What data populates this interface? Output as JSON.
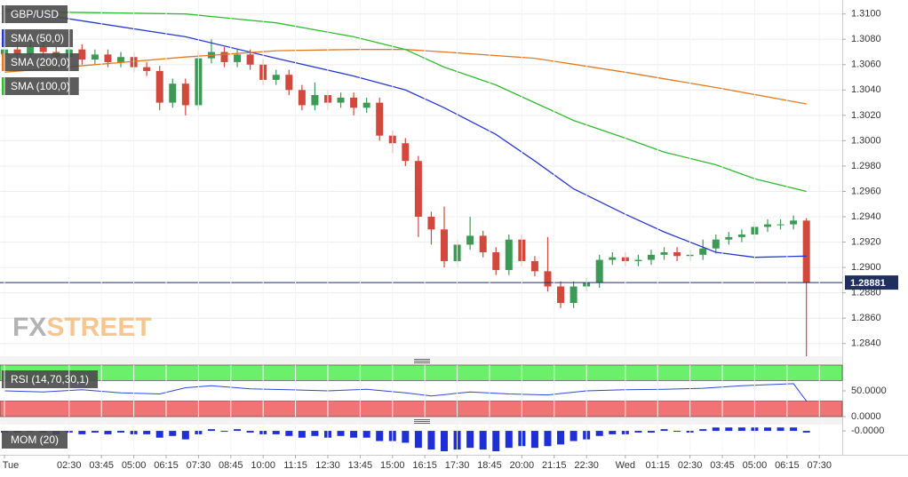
{
  "chart_data": [
    {
      "type": "candlestick",
      "title": "GBP/USD",
      "watermark": {
        "left": "FX",
        "right": "STREET"
      },
      "up_color": "#3d9a56",
      "down_color": "#d2483c",
      "candles": [
        [
          1.3068,
          1.3076,
          1.3064,
          1.3072
        ],
        [
          1.3072,
          1.3076,
          1.3064,
          1.3068
        ],
        [
          1.3068,
          1.3078,
          1.3064,
          1.3074
        ],
        [
          1.3074,
          1.3078,
          1.3066,
          1.307
        ],
        [
          1.307,
          1.3074,
          1.3062,
          1.3066
        ],
        [
          1.3066,
          1.3076,
          1.3062,
          1.3072
        ],
        [
          1.3072,
          1.3076,
          1.306,
          1.3064
        ],
        [
          1.3064,
          1.3072,
          1.306,
          1.3068
        ],
        [
          1.3068,
          1.3072,
          1.3058,
          1.3062
        ],
        [
          1.3062,
          1.307,
          1.3058,
          1.3066
        ],
        [
          1.3066,
          1.307,
          1.3054,
          1.3058
        ],
        [
          1.3058,
          1.3062,
          1.3051,
          1.3055
        ],
        [
          1.3055,
          1.3059,
          1.3024,
          1.303
        ],
        [
          1.303,
          1.3049,
          1.3026,
          1.3045
        ],
        [
          1.3045,
          1.3049,
          1.302,
          1.3028
        ],
        [
          1.3028,
          1.3071,
          1.3024,
          1.3065
        ],
        [
          1.3065,
          1.308,
          1.3061,
          1.307
        ],
        [
          1.307,
          1.3074,
          1.3058,
          1.3062
        ],
        [
          1.3062,
          1.3072,
          1.3058,
          1.3068
        ],
        [
          1.3068,
          1.3072,
          1.3056,
          1.306
        ],
        [
          1.306,
          1.3064,
          1.3044,
          1.3048
        ],
        [
          1.3048,
          1.3056,
          1.3044,
          1.3052
        ],
        [
          1.3052,
          1.3056,
          1.3036,
          1.304
        ],
        [
          1.304,
          1.3044,
          1.3024,
          1.3028
        ],
        [
          1.3028,
          1.3046,
          1.3024,
          1.3036
        ],
        [
          1.3036,
          1.304,
          1.3024,
          1.303
        ],
        [
          1.303,
          1.3038,
          1.3026,
          1.3034
        ],
        [
          1.3034,
          1.3038,
          1.302,
          1.3026
        ],
        [
          1.3026,
          1.3034,
          1.3022,
          1.303
        ],
        [
          1.303,
          1.3034,
          1.3,
          1.3004
        ],
        [
          1.3004,
          1.3008,
          1.299,
          1.2998
        ],
        [
          1.2998,
          1.3002,
          1.298,
          1.2984
        ],
        [
          1.2984,
          1.2988,
          1.2924,
          1.294
        ],
        [
          1.294,
          1.2944,
          1.2918,
          1.293
        ],
        [
          1.293,
          1.2948,
          1.29,
          1.2905
        ],
        [
          1.2905,
          1.2922,
          1.29,
          1.2918
        ],
        [
          1.2918,
          1.294,
          1.2914,
          1.2925
        ],
        [
          1.2925,
          1.2929,
          1.2908,
          1.2912
        ],
        [
          1.2912,
          1.2916,
          1.2894,
          1.2898
        ],
        [
          1.2898,
          1.2926,
          1.2894,
          1.2922
        ],
        [
          1.2922,
          1.2926,
          1.2901,
          1.2905
        ],
        [
          1.2905,
          1.2909,
          1.2893,
          1.2897
        ],
        [
          1.2897,
          1.2924,
          1.2881,
          1.2885
        ],
        [
          1.2885,
          1.2889,
          1.2868,
          1.2872
        ],
        [
          1.2872,
          1.2889,
          1.2868,
          1.2885
        ],
        [
          1.2885,
          1.2892,
          1.2881,
          1.2888
        ],
        [
          1.2888,
          1.291,
          1.2884,
          1.2906
        ],
        [
          1.2906,
          1.2912,
          1.2902,
          1.2908
        ],
        [
          1.2908,
          1.2912,
          1.2901,
          1.2905
        ],
        [
          1.2905,
          1.291,
          1.2901,
          1.2906
        ],
        [
          1.2906,
          1.2914,
          1.2902,
          1.291
        ],
        [
          1.291,
          1.2916,
          1.2906,
          1.2912
        ],
        [
          1.2912,
          1.2916,
          1.2905,
          1.2909
        ],
        [
          1.2909,
          1.2914,
          1.2905,
          1.291
        ],
        [
          1.291,
          1.2922,
          1.2906,
          1.2915
        ],
        [
          1.2915,
          1.2926,
          1.2911,
          1.2922
        ],
        [
          1.2922,
          1.2928,
          1.2918,
          1.2924
        ],
        [
          1.2924,
          1.293,
          1.292,
          1.2926
        ],
        [
          1.2926,
          1.2936,
          1.2922,
          1.2932
        ],
        [
          1.2932,
          1.2938,
          1.2928,
          1.2934
        ],
        [
          1.2934,
          1.2938,
          1.293,
          1.2934
        ],
        [
          1.2934,
          1.2941,
          1.293,
          1.2937
        ],
        [
          1.2937,
          1.2939,
          1.283,
          1.28881
        ]
      ],
      "series": [
        {
          "name": "SMA (50,0)",
          "color": "#2738d0",
          "x": [
            0,
            7,
            14,
            21,
            27,
            31,
            34,
            38,
            41,
            44,
            48,
            51,
            55,
            58,
            62
          ],
          "values": [
            1.3104,
            1.3093,
            1.3082,
            1.3065,
            1.3051,
            1.304,
            1.3026,
            1.3005,
            1.2984,
            1.2962,
            1.2942,
            1.2928,
            1.2912,
            1.2908,
            1.2909
          ]
        },
        {
          "name": "SMA (200,0)",
          "color": "#e07a22",
          "x": [
            0,
            7,
            14,
            21,
            27,
            31,
            34,
            41,
            48,
            55,
            62
          ],
          "values": [
            1.3054,
            1.306,
            1.3066,
            1.3071,
            1.3072,
            1.3072,
            1.307,
            1.3065,
            1.3054,
            1.3042,
            1.3029
          ]
        },
        {
          "name": "SMA (100,0)",
          "color": "#2fbb2f",
          "x": [
            0,
            14,
            21,
            27,
            31,
            34,
            38,
            41,
            44,
            48,
            51,
            55,
            58,
            62
          ],
          "values": [
            1.3102,
            1.31,
            1.3093,
            1.3082,
            1.3072,
            1.3058,
            1.3044,
            1.303,
            1.3016,
            1.3002,
            1.2991,
            1.2981,
            1.297,
            1.296
          ]
        }
      ],
      "last_price": {
        "value": 1.28881,
        "label": "1.28881"
      },
      "last_price_color": "#1f2f5e",
      "xlim": [
        -0.343,
        64.77
      ],
      "ylim": [
        1.283,
        1.3111
      ],
      "grid": true,
      "yticks": [
        {
          "value": 1.284,
          "label": "1.2840"
        },
        {
          "value": 1.286,
          "label": "1.2860"
        },
        {
          "value": 1.288,
          "label": "1.2880"
        },
        {
          "value": 1.29,
          "label": "1.2900"
        },
        {
          "value": 1.292,
          "label": "1.2920"
        },
        {
          "value": 1.294,
          "label": "1.2940"
        },
        {
          "value": 1.296,
          "label": "1.2960"
        },
        {
          "value": 1.298,
          "label": "1.2980"
        },
        {
          "value": 1.3,
          "label": "1.3000"
        },
        {
          "value": 1.302,
          "label": "1.3020"
        },
        {
          "value": 1.304,
          "label": "1.3040"
        },
        {
          "value": 1.306,
          "label": "1.3060"
        },
        {
          "value": 1.308,
          "label": "1.3080"
        },
        {
          "value": 1.31,
          "label": "1.3100"
        }
      ]
    },
    {
      "type": "line",
      "title": "RSI (14,70,30,1)",
      "color": "#2b49d6",
      "bands": [
        {
          "from": 70,
          "to": 100,
          "color": "#6cf06c"
        },
        {
          "from": 0,
          "to": 30,
          "color": "#f27373"
        }
      ],
      "x": [
        0,
        3,
        6,
        9,
        12,
        14,
        16,
        19,
        22,
        25,
        28,
        31,
        33,
        36,
        39,
        42,
        45,
        48,
        51,
        54,
        57,
        60,
        61,
        62
      ],
      "values": [
        50,
        48,
        52,
        46,
        44,
        56,
        60,
        54,
        52,
        50,
        53,
        46,
        40,
        48,
        44,
        42,
        50,
        52,
        53,
        55,
        60,
        63,
        64,
        30
      ],
      "xlim": [
        -0.343,
        64.77
      ],
      "ylim": [
        0,
        100
      ],
      "grid": false,
      "yticks": [
        {
          "value": 50,
          "label": "50.0000"
        },
        {
          "value": 0,
          "label": "0.0000"
        }
      ]
    },
    {
      "type": "bar",
      "title": "MOM (20)",
      "color": "#1f2fd8",
      "values": [
        -0.001,
        -0.001,
        0,
        -0.001,
        -0.002,
        -0.001,
        -0.002,
        -0.001,
        -0.002,
        -0.001,
        -0.002,
        -0.002,
        -0.004,
        -0.003,
        -0.005,
        -0.002,
        0.001,
        0,
        0.001,
        -0.001,
        -0.002,
        -0.002,
        -0.003,
        -0.004,
        -0.003,
        -0.004,
        -0.003,
        -0.004,
        -0.004,
        -0.006,
        -0.006,
        -0.007,
        -0.01,
        -0.011,
        -0.012,
        -0.011,
        -0.01,
        -0.011,
        -0.012,
        -0.01,
        -0.009,
        -0.01,
        -0.009,
        -0.008,
        -0.006,
        -0.005,
        -0.003,
        -0.002,
        -0.002,
        -0.001,
        -0.001,
        0.001,
        0,
        -0.001,
        0.001,
        0.002,
        0.002,
        0.002,
        0.002,
        0.002,
        0.002,
        0.002,
        -0.001
      ],
      "xlim": [
        -0.343,
        64.77
      ],
      "ylim": [
        -0.012,
        0.0037
      ],
      "grid": false,
      "yticks": [
        {
          "value": 0,
          "label": "-0.0000"
        }
      ],
      "xticks": [
        {
          "value": 0,
          "label": "Tue"
        },
        {
          "value": 5,
          "label": "02:30"
        },
        {
          "value": 7.5,
          "label": "03:45"
        },
        {
          "value": 10,
          "label": "05:00"
        },
        {
          "value": 12.5,
          "label": "06:15"
        },
        {
          "value": 15,
          "label": "07:30"
        },
        {
          "value": 17.5,
          "label": "08:45"
        },
        {
          "value": 20,
          "label": "10:00"
        },
        {
          "value": 22.5,
          "label": "11:15"
        },
        {
          "value": 25,
          "label": "12:30"
        },
        {
          "value": 27.5,
          "label": "13:45"
        },
        {
          "value": 30,
          "label": "15:00"
        },
        {
          "value": 32.5,
          "label": "16:15"
        },
        {
          "value": 35,
          "label": "17:30"
        },
        {
          "value": 37.5,
          "label": "18:45"
        },
        {
          "value": 40,
          "label": "20:00"
        },
        {
          "value": 42.5,
          "label": "21:15"
        },
        {
          "value": 45,
          "label": "22:30"
        },
        {
          "value": 48,
          "label": "Wed"
        },
        {
          "value": 50.5,
          "label": "01:15"
        },
        {
          "value": 53,
          "label": "02:30"
        },
        {
          "value": 55.5,
          "label": "03:45"
        },
        {
          "value": 58,
          "label": "05:00"
        },
        {
          "value": 60.5,
          "label": "06:15"
        },
        {
          "value": 63,
          "label": "07:30"
        }
      ]
    }
  ]
}
